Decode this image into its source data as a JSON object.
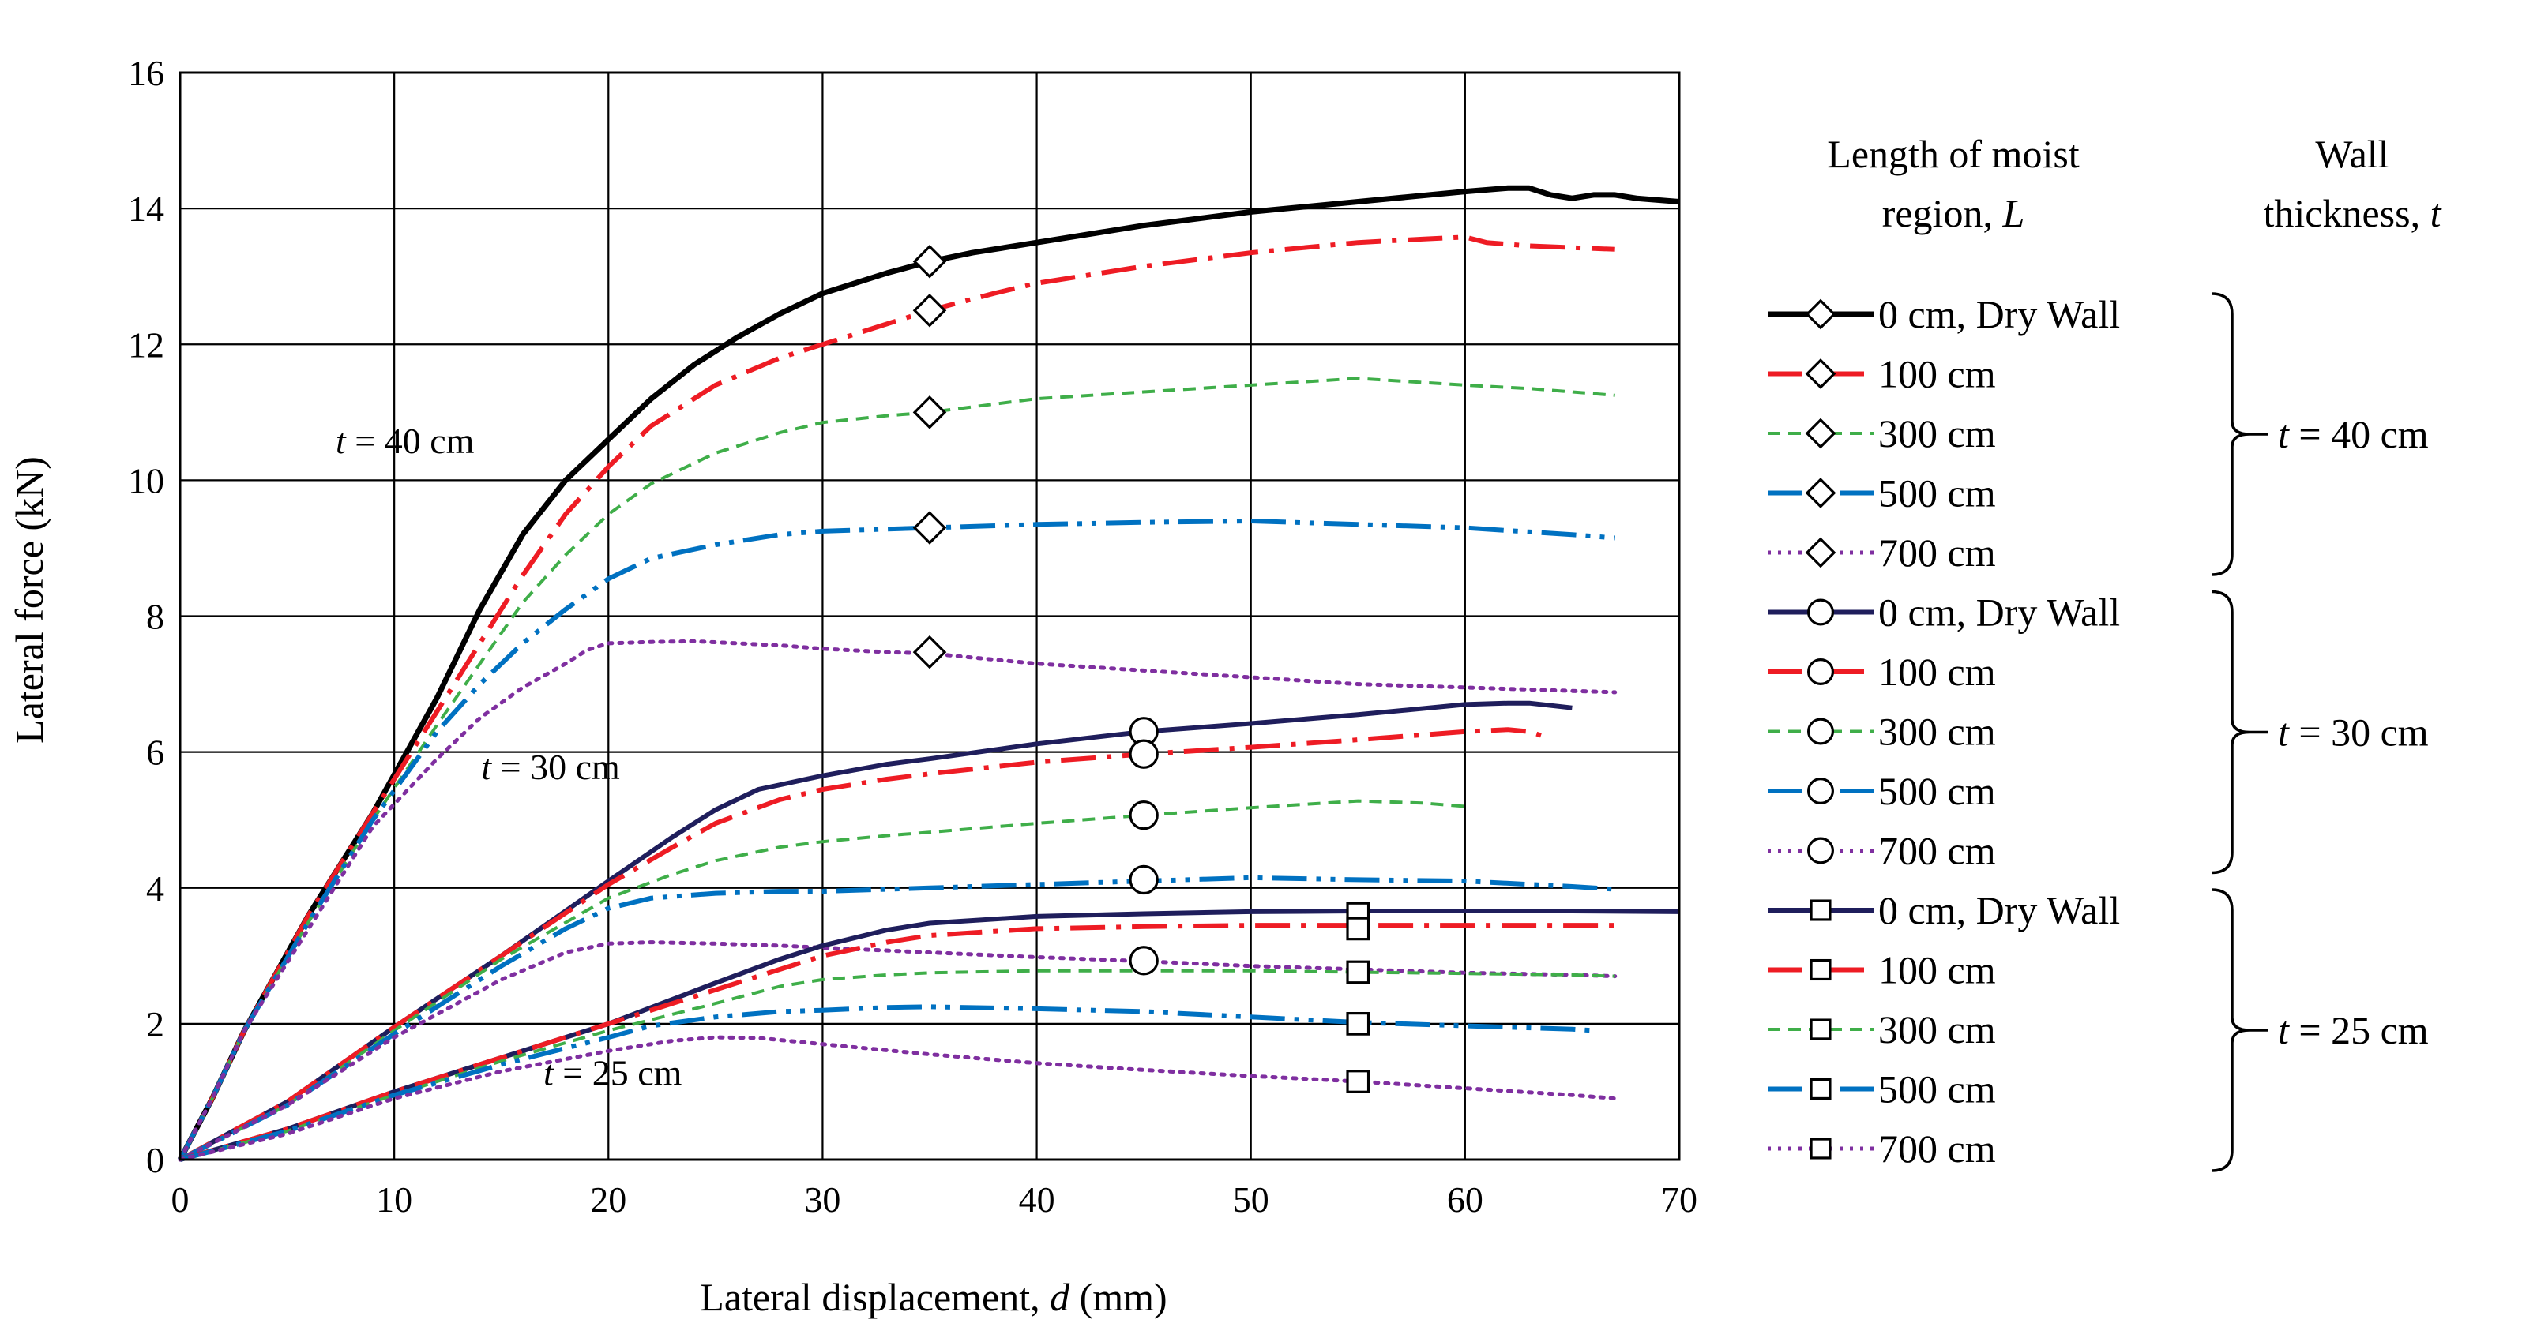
{
  "chart_data": {
    "type": "line",
    "xlabel": "Lateral displacement, d (mm)",
    "xlabel_prefix": "Lateral displacement, ",
    "xlabel_var": "d",
    "xlabel_suffix": " (mm)",
    "ylabel": "Lateral force (kN)",
    "xlim": [
      0,
      70
    ],
    "ylim": [
      0,
      16
    ],
    "xticks": [
      0,
      10,
      20,
      30,
      40,
      50,
      60,
      70
    ],
    "yticks": [
      0,
      2,
      4,
      6,
      8,
      10,
      12,
      14,
      16
    ],
    "grid": true,
    "legend_header_length": [
      "Length of moist",
      "region, L"
    ],
    "legend_header_length_var": "L",
    "legend_header_thickness": [
      "Wall",
      "thickness, t"
    ],
    "legend_header_thickness_var": "t",
    "annotations": [
      {
        "var": "t",
        "text": " = 40 cm",
        "x": 10.5,
        "y": 10.4
      },
      {
        "var": "t",
        "text": " = 30 cm",
        "x": 17.3,
        "y": 5.6
      },
      {
        "var": "t",
        "text": " = 25 cm",
        "x": 20.2,
        "y": 1.1
      }
    ],
    "groups": [
      {
        "thickness_label": "= 40 cm",
        "thickness_var": "t",
        "marker": "diamond",
        "series": [
          {
            "name": "0 cm, Dry Wall",
            "color": "#000000",
            "dash": "solid",
            "width": 7,
            "x": [
              0,
              1.5,
              3,
              6,
              9,
              12,
              14,
              16,
              18,
              20,
              22,
              24,
              26,
              28,
              30,
              33,
              35,
              37,
              40,
              45,
              50,
              55,
              60,
              62,
              63,
              64,
              65,
              66,
              67,
              68,
              70
            ],
            "y": [
              0,
              0.9,
              1.9,
              3.6,
              5.1,
              6.8,
              8.1,
              9.2,
              10.0,
              10.6,
              11.2,
              11.7,
              12.1,
              12.45,
              12.75,
              13.05,
              13.22,
              13.35,
              13.5,
              13.75,
              13.95,
              14.1,
              14.25,
              14.3,
              14.3,
              14.2,
              14.15,
              14.2,
              14.2,
              14.15,
              14.1
            ],
            "marker_pos": [
              35,
              13.22
            ]
          },
          {
            "name": "100 cm",
            "color": "#ee1c24",
            "dash": "dashdot",
            "width": 6,
            "x": [
              0,
              1.5,
              3,
              6,
              9,
              12,
              14,
              16,
              18,
              20,
              22,
              25,
              28,
              30,
              33,
              35,
              38,
              40,
              45,
              50,
              55,
              58,
              60,
              61,
              63,
              67
            ],
            "y": [
              0,
              0.9,
              1.9,
              3.6,
              5.1,
              6.6,
              7.6,
              8.6,
              9.5,
              10.2,
              10.8,
              11.4,
              11.8,
              12.0,
              12.3,
              12.5,
              12.75,
              12.9,
              13.15,
              13.35,
              13.5,
              13.55,
              13.58,
              13.5,
              13.45,
              13.4
            ],
            "marker_pos": [
              35,
              12.5
            ]
          },
          {
            "name": "300 cm",
            "color": "#3fae49",
            "dash": "dash",
            "width": 4,
            "x": [
              0,
              1.5,
              3,
              6,
              9,
              12,
              14,
              16,
              18,
              20,
              22,
              25,
              28,
              30,
              33,
              35,
              40,
              45,
              50,
              55,
              60,
              63,
              67
            ],
            "y": [
              0,
              0.9,
              1.9,
              3.5,
              5.0,
              6.4,
              7.3,
              8.2,
              8.9,
              9.5,
              9.95,
              10.4,
              10.7,
              10.85,
              10.95,
              11.0,
              11.2,
              11.3,
              11.4,
              11.5,
              11.4,
              11.35,
              11.25
            ],
            "marker_pos": [
              35,
              11.0
            ]
          },
          {
            "name": "500 cm",
            "color": "#0071c1",
            "dash": "dashdotdot",
            "width": 6,
            "x": [
              0,
              1.5,
              3,
              6,
              9,
              12,
              14,
              16,
              18,
              20,
              22,
              25,
              28,
              30,
              35,
              40,
              45,
              50,
              55,
              60,
              65,
              67
            ],
            "y": [
              0,
              0.9,
              1.9,
              3.5,
              5.0,
              6.3,
              7.0,
              7.6,
              8.1,
              8.55,
              8.85,
              9.05,
              9.2,
              9.25,
              9.3,
              9.35,
              9.38,
              9.4,
              9.35,
              9.3,
              9.2,
              9.15
            ],
            "marker_pos": [
              35,
              9.3
            ]
          },
          {
            "name": "700 cm",
            "color": "#7f2fa0",
            "dash": "dot",
            "width": 5,
            "x": [
              0,
              1.5,
              3,
              6,
              9,
              12,
              14,
              16,
              18,
              19,
              20,
              22,
              24,
              26,
              28,
              30,
              33,
              35,
              40,
              45,
              50,
              55,
              60,
              65,
              67
            ],
            "y": [
              0,
              0.9,
              1.9,
              3.4,
              4.9,
              5.9,
              6.5,
              6.95,
              7.3,
              7.5,
              7.6,
              7.62,
              7.63,
              7.6,
              7.57,
              7.52,
              7.47,
              7.45,
              7.3,
              7.2,
              7.1,
              7.0,
              6.95,
              6.9,
              6.88
            ],
            "marker_pos": [
              35,
              7.47
            ]
          }
        ]
      },
      {
        "thickness_label": "= 30 cm",
        "thickness_var": "t",
        "marker": "circle",
        "series": [
          {
            "name": "0 cm, Dry Wall",
            "color": "#1f1e5c",
            "dash": "solid",
            "width": 6,
            "x": [
              0,
              5,
              10,
              15,
              20,
              23,
              25,
              27,
              30,
              33,
              35,
              40,
              45,
              50,
              55,
              60,
              62,
              63,
              65
            ],
            "y": [
              0,
              0.85,
              1.95,
              3.0,
              4.1,
              4.75,
              5.15,
              5.45,
              5.65,
              5.82,
              5.9,
              6.12,
              6.3,
              6.42,
              6.55,
              6.7,
              6.72,
              6.72,
              6.65
            ],
            "marker_pos": [
              45,
              6.3
            ]
          },
          {
            "name": "100 cm",
            "color": "#ee1c24",
            "dash": "dashdot",
            "width": 6,
            "x": [
              0,
              5,
              10,
              15,
              20,
              23,
              25,
              28,
              30,
              33,
              35,
              40,
              45,
              50,
              55,
              60,
              62,
              63,
              64
            ],
            "y": [
              0,
              0.85,
              1.95,
              3.0,
              4.05,
              4.6,
              4.95,
              5.3,
              5.45,
              5.6,
              5.68,
              5.85,
              5.97,
              6.07,
              6.18,
              6.3,
              6.33,
              6.3,
              6.2
            ],
            "marker_pos": [
              45,
              5.97
            ]
          },
          {
            "name": "300 cm",
            "color": "#3fae49",
            "dash": "dash",
            "width": 4,
            "x": [
              0,
              5,
              10,
              15,
              20,
              23,
              25,
              28,
              30,
              33,
              35,
              40,
              45,
              50,
              55,
              58,
              60
            ],
            "y": [
              0,
              0.8,
              1.9,
              2.95,
              3.85,
              4.2,
              4.4,
              4.6,
              4.68,
              4.77,
              4.82,
              4.95,
              5.07,
              5.18,
              5.28,
              5.25,
              5.2
            ],
            "marker_pos": [
              45,
              5.07
            ]
          },
          {
            "name": "500 cm",
            "color": "#0071c1",
            "dash": "dashdotdot",
            "width": 6,
            "x": [
              0,
              5,
              10,
              15,
              18,
              20,
              22,
              25,
              28,
              30,
              35,
              40,
              45,
              50,
              55,
              60,
              65,
              67
            ],
            "y": [
              0,
              0.8,
              1.85,
              2.85,
              3.4,
              3.7,
              3.85,
              3.92,
              3.95,
              3.95,
              4.0,
              4.05,
              4.1,
              4.15,
              4.12,
              4.1,
              4.02,
              3.98
            ],
            "marker_pos": [
              45,
              4.12
            ]
          },
          {
            "name": "700 cm",
            "color": "#7f2fa0",
            "dash": "dot",
            "width": 5,
            "x": [
              0,
              5,
              10,
              15,
              18,
              20,
              22,
              25,
              28,
              30,
              35,
              40,
              45,
              50,
              55,
              60,
              65,
              67
            ],
            "y": [
              0,
              0.8,
              1.8,
              2.65,
              3.05,
              3.18,
              3.2,
              3.18,
              3.15,
              3.12,
              3.05,
              2.98,
              2.92,
              2.85,
              2.8,
              2.75,
              2.72,
              2.7
            ],
            "marker_pos": [
              45,
              2.93
            ]
          }
        ]
      },
      {
        "thickness_label": "= 25 cm",
        "thickness_var": "t",
        "marker": "square",
        "series": [
          {
            "name": "0 cm, Dry Wall",
            "color": "#1f1e5c",
            "dash": "solid",
            "width": 6,
            "x": [
              0,
              5,
              10,
              15,
              20,
              25,
              28,
              30,
              33,
              35,
              40,
              45,
              50,
              55,
              60,
              65,
              70
            ],
            "y": [
              0,
              0.45,
              1.0,
              1.5,
              2.0,
              2.6,
              2.95,
              3.15,
              3.38,
              3.48,
              3.58,
              3.62,
              3.65,
              3.66,
              3.66,
              3.66,
              3.65
            ],
            "marker_pos": [
              55,
              3.62
            ]
          },
          {
            "name": "100 cm",
            "color": "#ee1c24",
            "dash": "dashdot",
            "width": 6,
            "x": [
              0,
              5,
              10,
              15,
              20,
              25,
              28,
              30,
              33,
              35,
              40,
              45,
              50,
              55,
              60,
              65,
              67
            ],
            "y": [
              0,
              0.45,
              1.0,
              1.5,
              2.0,
              2.5,
              2.8,
              3.0,
              3.2,
              3.3,
              3.4,
              3.43,
              3.45,
              3.45,
              3.45,
              3.45,
              3.45
            ],
            "marker_pos": [
              55,
              3.4
            ]
          },
          {
            "name": "300 cm",
            "color": "#3fae49",
            "dash": "dash",
            "width": 4,
            "x": [
              0,
              5,
              10,
              15,
              20,
              25,
              28,
              30,
              33,
              35,
              40,
              45,
              50,
              55,
              60,
              65,
              67
            ],
            "y": [
              0,
              0.42,
              0.95,
              1.45,
              1.9,
              2.3,
              2.55,
              2.65,
              2.72,
              2.75,
              2.78,
              2.78,
              2.78,
              2.76,
              2.74,
              2.72,
              2.7
            ],
            "marker_pos": [
              55,
              2.76
            ]
          },
          {
            "name": "500 cm",
            "color": "#0071c1",
            "dash": "dashdotdot",
            "width": 6,
            "x": [
              0,
              5,
              10,
              15,
              20,
              22,
              25,
              28,
              30,
              33,
              35,
              40,
              45,
              50,
              55,
              60,
              65,
              66
            ],
            "y": [
              0,
              0.42,
              0.95,
              1.4,
              1.8,
              1.97,
              2.1,
              2.18,
              2.2,
              2.24,
              2.25,
              2.22,
              2.18,
              2.1,
              2.02,
              1.97,
              1.92,
              1.9
            ],
            "marker_pos": [
              55,
              2.0
            ]
          },
          {
            "name": "700 cm",
            "color": "#7f2fa0",
            "dash": "dot",
            "width": 5,
            "x": [
              0,
              5,
              10,
              15,
              20,
              23,
              25,
              27,
              30,
              35,
              40,
              45,
              50,
              55,
              60,
              65,
              67
            ],
            "y": [
              0,
              0.38,
              0.9,
              1.3,
              1.6,
              1.75,
              1.8,
              1.79,
              1.7,
              1.55,
              1.42,
              1.32,
              1.23,
              1.15,
              1.05,
              0.95,
              0.9
            ],
            "marker_pos": [
              55,
              1.15
            ]
          }
        ]
      }
    ]
  }
}
